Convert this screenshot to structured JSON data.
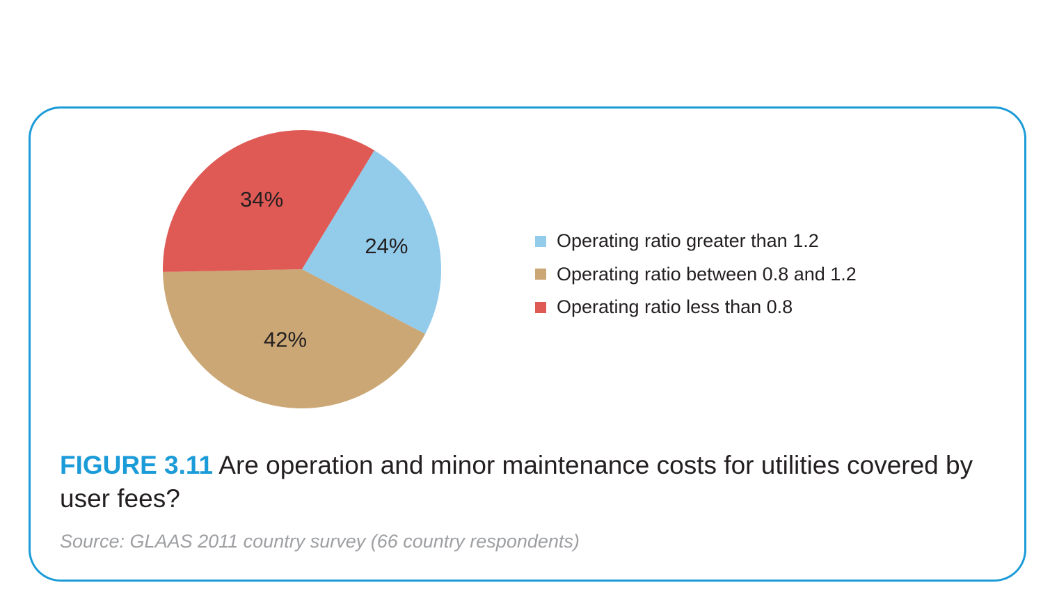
{
  "chart_data": {
    "type": "pie",
    "slices": [
      {
        "label": "Operating ratio greater than 1.2",
        "value": 24,
        "value_label": "24%",
        "color": "#93cbeb"
      },
      {
        "label": "Operating ratio between 0.8 and 1.2",
        "value": 42,
        "value_label": "42%",
        "color": "#cba775"
      },
      {
        "label": "Operating ratio less than 0.8",
        "value": 34,
        "value_label": "34%",
        "color": "#df5955"
      }
    ],
    "legend_position": "right"
  },
  "caption": {
    "figure_label": "FIGURE 3.11",
    "text": "Are operation and minor maintenance costs for utilities covered by user fees?"
  },
  "source": "Source: GLAAS 2011 country survey (66 country respondents)",
  "colors": {
    "frame": "#1b9bd7",
    "figure_label": "#1b9bd7",
    "source_text": "#9d9fa2"
  }
}
